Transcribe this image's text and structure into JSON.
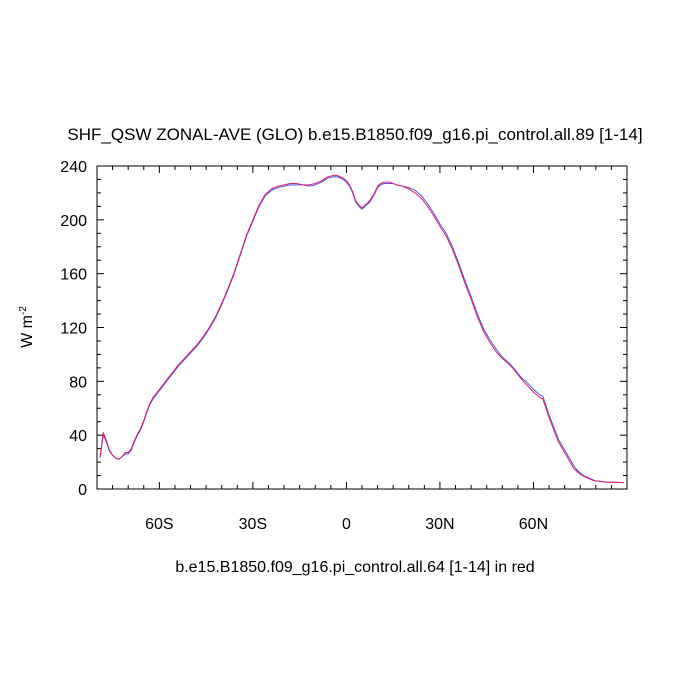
{
  "chart_data": {
    "type": "line",
    "title": "SHF_QSW ZONAL-AVE (GLO) b.e15.B1850.f09_g16.pi_control.all.89 [1-14]",
    "xlabel": "b.e15.B1850.f09_g16.pi_control.all.64 [1-14] in red",
    "ylabel": "W m",
    "ylabel_superscript": "-2",
    "xlim": [
      -80,
      90
    ],
    "ylim": [
      0,
      240
    ],
    "x_ticks": [
      {
        "value": -60,
        "label": "60S"
      },
      {
        "value": -30,
        "label": "30S"
      },
      {
        "value": 0,
        "label": "0"
      },
      {
        "value": 30,
        "label": "30N"
      },
      {
        "value": 60,
        "label": "60N"
      }
    ],
    "y_ticks": [
      0,
      40,
      80,
      120,
      160,
      200,
      240
    ],
    "series": [
      {
        "name": "b.e15.B1850.f09_g16.pi_control.all.89 [1-14]",
        "color": "#4b57e8",
        "x": [
          -79,
          -78,
          -77,
          -76,
          -75,
          -74,
          -73,
          -72,
          -71,
          -70,
          -69,
          -68,
          -67,
          -66,
          -65,
          -64,
          -63,
          -62,
          -61,
          -60,
          -58,
          -56,
          -54,
          -52,
          -50,
          -48,
          -46,
          -44,
          -42,
          -40,
          -38,
          -36,
          -34,
          -32,
          -30,
          -28,
          -26,
          -24,
          -22,
          -20,
          -18,
          -16,
          -14,
          -12,
          -10,
          -8,
          -6,
          -4,
          -3,
          -2,
          -1,
          0,
          1,
          2,
          3,
          4,
          5,
          6,
          7,
          8,
          9,
          10,
          11,
          12,
          13,
          14,
          15,
          16,
          18,
          20,
          22,
          24,
          26,
          28,
          30,
          32,
          34,
          36,
          38,
          40,
          42,
          44,
          46,
          48,
          50,
          52,
          54,
          56,
          58,
          60,
          62,
          63,
          64,
          65,
          66,
          67,
          68,
          69,
          70,
          71,
          72,
          73,
          74,
          75,
          76,
          77,
          78,
          79,
          80,
          82,
          84,
          86,
          88,
          89
        ],
        "values": [
          23,
          40,
          35,
          28,
          25,
          23,
          22,
          24,
          26,
          26,
          29,
          35,
          40,
          44,
          50,
          57,
          63,
          67,
          70,
          73,
          79,
          85,
          91,
          96,
          101,
          106,
          112,
          119,
          127,
          137,
          148,
          160,
          174,
          188,
          199,
          210,
          218,
          222,
          224,
          225,
          226,
          226,
          226,
          225,
          226,
          228,
          231,
          232,
          232,
          231,
          230,
          228,
          225,
          220,
          213,
          210,
          208,
          210,
          212,
          215,
          219,
          224,
          226,
          227,
          227,
          227,
          227,
          226,
          225,
          224,
          222,
          218,
          212,
          205,
          197,
          190,
          180,
          168,
          155,
          143,
          130,
          119,
          111,
          104,
          98,
          94,
          89,
          83,
          79,
          74,
          70,
          69,
          62,
          55,
          49,
          43,
          37,
          33,
          29,
          25,
          21,
          17,
          14,
          12,
          10,
          9,
          8,
          7,
          6,
          5.5,
          5,
          5,
          4.8,
          4.7
        ]
      },
      {
        "name": "b.e15.B1850.f09_g16.pi_control.all.64 [1-14]",
        "color": "#e01e6e",
        "x": [
          -79,
          -78,
          -77,
          -76,
          -75,
          -74,
          -73,
          -72,
          -71,
          -70,
          -69,
          -68,
          -67,
          -66,
          -65,
          -64,
          -63,
          -62,
          -61,
          -60,
          -58,
          -56,
          -54,
          -52,
          -50,
          -48,
          -46,
          -44,
          -42,
          -40,
          -38,
          -36,
          -34,
          -32,
          -30,
          -28,
          -26,
          -24,
          -22,
          -20,
          -18,
          -16,
          -14,
          -12,
          -10,
          -8,
          -6,
          -4,
          -3,
          -2,
          -1,
          0,
          1,
          2,
          3,
          4,
          5,
          6,
          7,
          8,
          9,
          10,
          11,
          12,
          13,
          14,
          15,
          16,
          18,
          20,
          22,
          24,
          26,
          28,
          30,
          32,
          34,
          36,
          38,
          40,
          42,
          44,
          46,
          48,
          50,
          52,
          54,
          56,
          58,
          60,
          62,
          63,
          64,
          65,
          66,
          67,
          68,
          69,
          70,
          71,
          72,
          73,
          74,
          75,
          76,
          77,
          78,
          79,
          80,
          82,
          84,
          86,
          88,
          89
        ],
        "values": [
          24,
          42,
          36,
          29,
          25,
          23,
          22,
          24,
          27,
          27,
          30,
          36,
          41,
          45,
          51,
          58,
          64,
          68,
          71,
          74,
          80,
          86,
          92,
          97,
          102,
          107,
          113,
          120,
          128,
          138,
          149,
          161,
          175,
          189,
          200,
          211,
          219,
          223,
          225,
          226,
          227,
          227,
          226,
          226,
          227,
          229,
          232,
          233,
          233,
          232,
          231,
          229,
          226,
          221,
          214,
          211,
          209,
          211,
          213,
          216,
          220,
          225,
          227,
          228,
          228,
          228,
          227,
          226,
          225,
          223,
          220,
          216,
          210,
          203,
          195,
          188,
          178,
          166,
          153,
          141,
          128,
          117,
          109,
          102,
          97,
          93,
          88,
          82,
          77,
          72,
          68,
          67,
          60,
          53,
          47,
          41,
          35,
          31,
          27,
          23,
          19,
          15,
          13,
          11,
          9.5,
          8.5,
          7.5,
          6.5,
          6,
          5.5,
          5,
          5,
          4.8,
          4.7
        ]
      }
    ]
  }
}
